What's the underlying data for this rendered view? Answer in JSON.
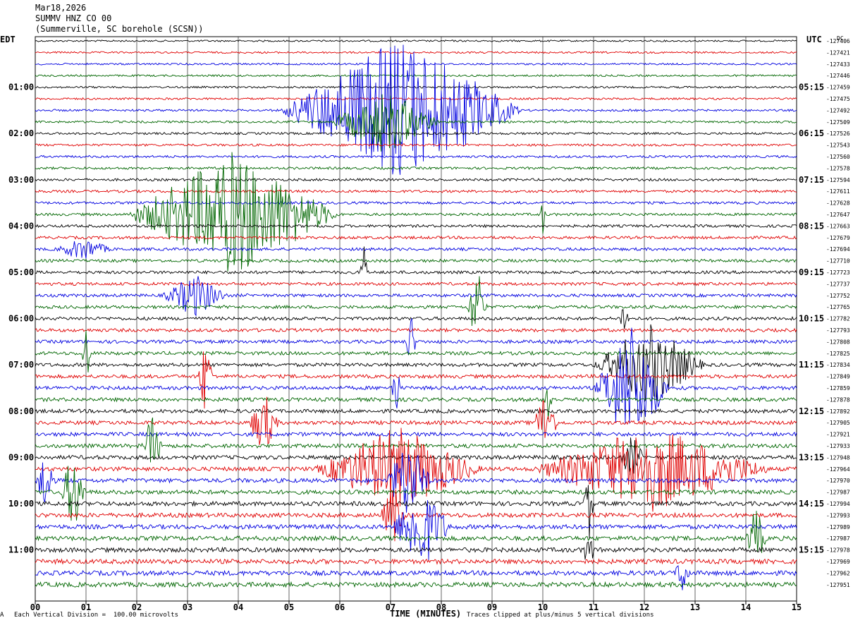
{
  "header": {
    "date": "Mar18,2026",
    "station": "SUMMV HNZ CO 00",
    "location": "(Summerville, SC borehole (SCSN))"
  },
  "left_tz": "EDT",
  "right_tz": "UTC",
  "corner_unit": "DC",
  "footer": {
    "scale": "Each Vertical Division =  100.00 microvolts",
    "clip": "Traces clipped at plus/minus 5 vertical divisions",
    "mark": "A"
  },
  "colors": {
    "trace_cycle": [
      "#000000",
      "#e00000",
      "#0000e0",
      "#006600"
    ],
    "grid": "#000000"
  },
  "chart_data": {
    "type": "line",
    "title": "SUMMV HNZ CO 00",
    "xlabel": "TIME (MINUTES)",
    "ylabel": "",
    "xlim": [
      0,
      15
    ],
    "x_ticks": [
      "00",
      "01",
      "02",
      "03",
      "04",
      "05",
      "06",
      "07",
      "08",
      "09",
      "10",
      "11",
      "12",
      "13",
      "14",
      "15"
    ],
    "rows_per_hour": 4,
    "left_hour_labels": [
      "01:00",
      "02:00",
      "03:00",
      "04:00",
      "05:00",
      "06:00",
      "07:00",
      "08:00",
      "09:00",
      "10:00",
      "11:00"
    ],
    "right_hour_labels": [
      "05:15",
      "06:15",
      "07:15",
      "08:15",
      "09:15",
      "10:15",
      "11:15",
      "12:15",
      "13:15",
      "14:15",
      "15:15"
    ],
    "trace_dc_offsets": [
      -127406,
      -127421,
      -127433,
      -127446,
      -127459,
      -127475,
      -127492,
      -127509,
      -127526,
      -127543,
      -127560,
      -127578,
      -127594,
      -127611,
      -127628,
      -127647,
      -127663,
      -127679,
      -127694,
      -127710,
      -127723,
      -127737,
      -127752,
      -127765,
      -127782,
      -127793,
      -127808,
      -127825,
      -127834,
      -127849,
      -127859,
      -127878,
      -127892,
      -127905,
      -127921,
      -127933,
      -127948,
      -127964,
      -127970,
      -127987,
      -127994,
      -127993,
      -127989,
      -127987,
      -127978,
      -127969,
      -127962,
      -127951
    ],
    "events": [
      {
        "row": 6,
        "start": 4.8,
        "end": 9.6,
        "amp": 7
      },
      {
        "row": 7,
        "start": 5.8,
        "end": 8.0,
        "amp": 3
      },
      {
        "row": 15,
        "start": 1.8,
        "end": 6.0,
        "amp": 6
      },
      {
        "row": 15,
        "start": 9.95,
        "end": 10.05,
        "amp": 2
      },
      {
        "row": 18,
        "start": 0.4,
        "end": 1.5,
        "amp": 1
      },
      {
        "row": 20,
        "start": 6.4,
        "end": 6.55,
        "amp": 4
      },
      {
        "row": 22,
        "start": 2.5,
        "end": 3.8,
        "amp": 2
      },
      {
        "row": 23,
        "start": 8.5,
        "end": 8.9,
        "amp": 4
      },
      {
        "row": 24,
        "start": 11.5,
        "end": 11.7,
        "amp": 2
      },
      {
        "row": 26,
        "start": 7.3,
        "end": 7.5,
        "amp": 3
      },
      {
        "row": 27,
        "start": 0.9,
        "end": 1.1,
        "amp": 3
      },
      {
        "row": 28,
        "start": 11.0,
        "end": 13.2,
        "amp": 4
      },
      {
        "row": 29,
        "start": 3.2,
        "end": 3.5,
        "amp": 4
      },
      {
        "row": 30,
        "start": 11.0,
        "end": 12.5,
        "amp": 6
      },
      {
        "row": 30,
        "start": 7.0,
        "end": 7.2,
        "amp": 3
      },
      {
        "row": 31,
        "start": 10.0,
        "end": 10.2,
        "amp": 3
      },
      {
        "row": 33,
        "start": 4.2,
        "end": 4.8,
        "amp": 3
      },
      {
        "row": 33,
        "start": 9.8,
        "end": 10.3,
        "amp": 3
      },
      {
        "row": 35,
        "start": 2.1,
        "end": 2.5,
        "amp": 3
      },
      {
        "row": 36,
        "start": 11.5,
        "end": 12.0,
        "amp": 2
      },
      {
        "row": 37,
        "start": 5.5,
        "end": 8.8,
        "amp": 4
      },
      {
        "row": 37,
        "start": 9.8,
        "end": 14.5,
        "amp": 4
      },
      {
        "row": 38,
        "start": 0.0,
        "end": 0.4,
        "amp": 3
      },
      {
        "row": 38,
        "start": 6.9,
        "end": 7.8,
        "amp": 4
      },
      {
        "row": 39,
        "start": 0.5,
        "end": 1.0,
        "amp": 4
      },
      {
        "row": 40,
        "start": 10.8,
        "end": 11.0,
        "amp": 4
      },
      {
        "row": 41,
        "start": 6.8,
        "end": 7.3,
        "amp": 3
      },
      {
        "row": 42,
        "start": 7.0,
        "end": 8.2,
        "amp": 4
      },
      {
        "row": 43,
        "start": 14.0,
        "end": 14.4,
        "amp": 3
      },
      {
        "row": 44,
        "start": 10.8,
        "end": 11.0,
        "amp": 3
      },
      {
        "row": 46,
        "start": 12.6,
        "end": 12.9,
        "amp": 2
      }
    ]
  }
}
